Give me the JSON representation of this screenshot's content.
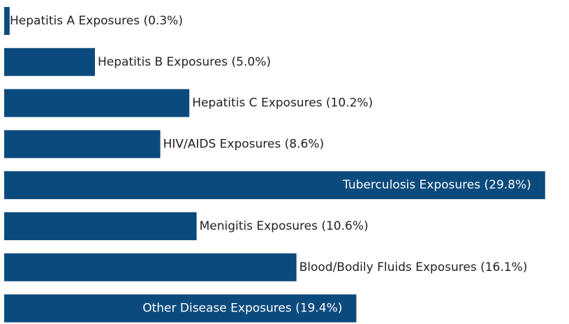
{
  "chart_data": {
    "type": "barh",
    "categories": [
      "Hepatitis A Exposures",
      "Hepatitis B Exposures",
      "Hepatitis C Exposures",
      "HIV/AIDS Exposures",
      "Tuberculosis Exposures",
      "Menigitis Exposures",
      "Blood/Bodily Fluids Exposures",
      "Other Disease Exposures"
    ],
    "values": [
      0.3,
      5.0,
      10.2,
      8.6,
      29.8,
      10.6,
      16.1,
      19.4
    ],
    "value_labels": [
      "(0.3%)",
      "(5.0%)",
      "(10.2%)",
      "(8.6%)",
      "(29.8%)",
      "(10.6%)",
      "(16.1%)",
      "(19.4%)"
    ],
    "color": "#0b4a7d"
  }
}
